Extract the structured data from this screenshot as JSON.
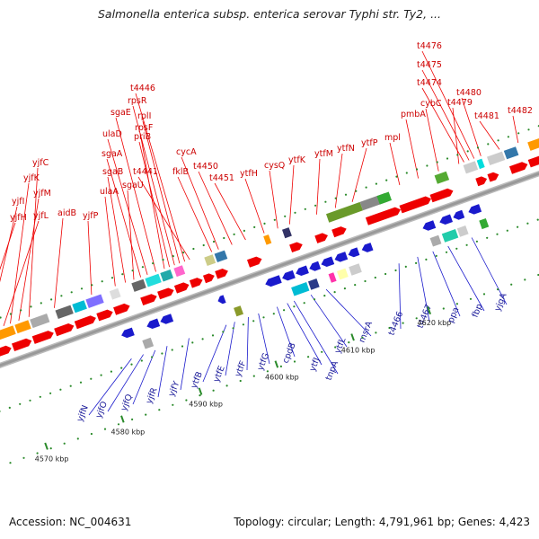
{
  "title": "Salmonella enterica subsp. enterica serovar Typhi str. Ty2, ...",
  "footer": {
    "accession": "Accession: NC_004631",
    "summary": "Topology: circular; Length: 4,791,961 bp; Genes: 4,423"
  },
  "colors": {
    "forward": "#ee0000",
    "reverse": "#1a1acc",
    "forward_label": "#cc0000",
    "reverse_label": "#1a1a99",
    "backbone": "#999999",
    "tick": "#2a8a2a"
  },
  "scale_ticks": [
    {
      "label": "4570 kbp",
      "kbp": 4570
    },
    {
      "label": "4580 kbp",
      "kbp": 4580
    },
    {
      "label": "4590 kbp",
      "kbp": 4590
    },
    {
      "label": "4600 kbp",
      "kbp": 4600
    },
    {
      "label": "4610 kbp",
      "kbp": 4610
    },
    {
      "label": "4620 kbp",
      "kbp": 4620
    }
  ],
  "forward_genes": [
    "yjfH",
    "yjfI",
    "yjfL",
    "yjfK",
    "yjfM",
    "yjfC",
    "aidB",
    "yjfP",
    "ulaA",
    "sgaB",
    "sgaU",
    "sgaA",
    "ulaD",
    "sgaE",
    "rpsF",
    "priB",
    "rpsR",
    "rplI",
    "t4446",
    "t4441",
    "fklB",
    "cycA",
    "t4450",
    "t4451",
    "ytfH",
    "cysQ",
    "ytfK",
    "ytfM",
    "ytfN",
    "ytfP",
    "mpl",
    "pmbA",
    "cybC",
    "t4479",
    "t4474",
    "t4475",
    "t4476",
    "t4480",
    "t4481",
    "t4482"
  ],
  "reverse_genes": [
    "yjfN",
    "yjfO",
    "yjfQ",
    "yjfR",
    "yjfY",
    "ytfB",
    "ytfE",
    "ytfF",
    "ytfG",
    "cpdB",
    "ytfJ",
    "tnpA",
    "ytfL",
    "msrA",
    "t4466",
    "t4467",
    "ppa",
    "fbp",
    "yjgA"
  ]
}
